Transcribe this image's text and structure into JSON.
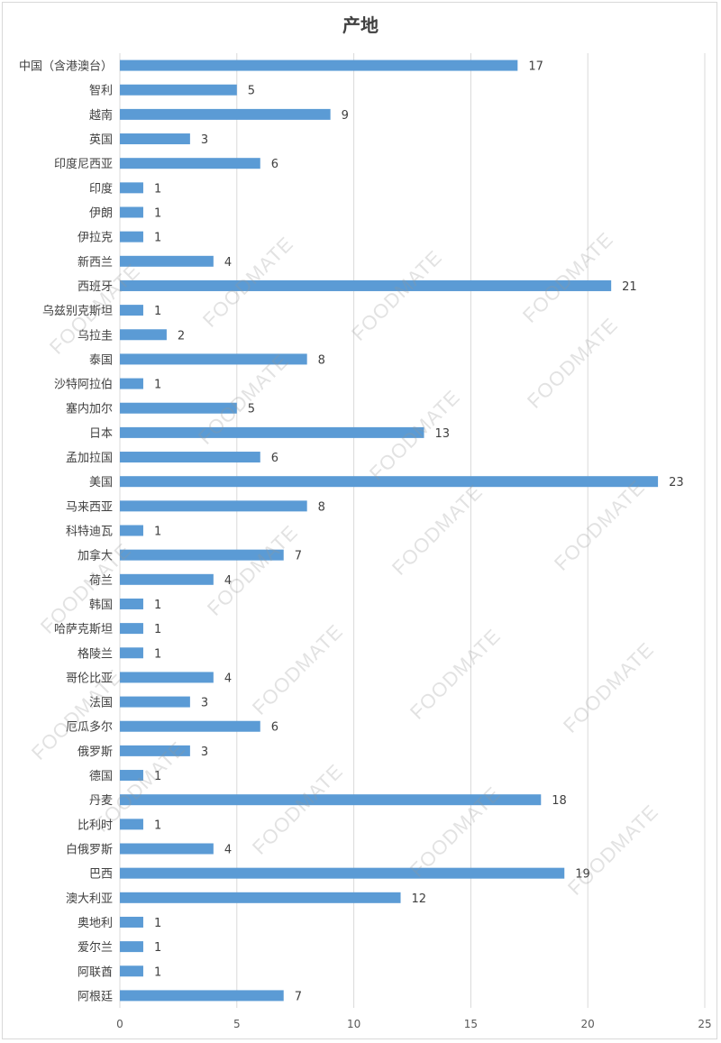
{
  "chart_data": {
    "type": "bar",
    "orientation": "horizontal",
    "title": "产地",
    "categories": [
      "中国（含港澳台）",
      "智利",
      "越南",
      "英国",
      "印度尼西亚",
      "印度",
      "伊朗",
      "伊拉克",
      "新西兰",
      "西班牙",
      "乌兹别克斯坦",
      "乌拉圭",
      "泰国",
      "沙特阿拉伯",
      "塞内加尔",
      "日本",
      "孟加拉国",
      "美国",
      "马来西亚",
      "科特迪瓦",
      "加拿大",
      "荷兰",
      "韩国",
      "哈萨克斯坦",
      "格陵兰",
      "哥伦比亚",
      "法国",
      "厄瓜多尔",
      "俄罗斯",
      "德国",
      "丹麦",
      "比利时",
      "白俄罗斯",
      "巴西",
      "澳大利亚",
      "奥地利",
      "爱尔兰",
      "阿联酋",
      "阿根廷"
    ],
    "values": [
      17,
      5,
      9,
      3,
      6,
      1,
      1,
      1,
      4,
      21,
      1,
      2,
      8,
      1,
      5,
      13,
      6,
      23,
      8,
      1,
      7,
      4,
      1,
      1,
      1,
      4,
      3,
      6,
      3,
      1,
      18,
      1,
      4,
      19,
      12,
      1,
      1,
      1,
      7
    ],
    "xlim": [
      0,
      25
    ],
    "xticks": [
      0,
      5,
      10,
      15,
      20,
      25
    ],
    "bar_color": "#5b9bd5",
    "grid": "vertical",
    "data_labels": true
  },
  "watermark": {
    "text": "FOODMATE"
  }
}
